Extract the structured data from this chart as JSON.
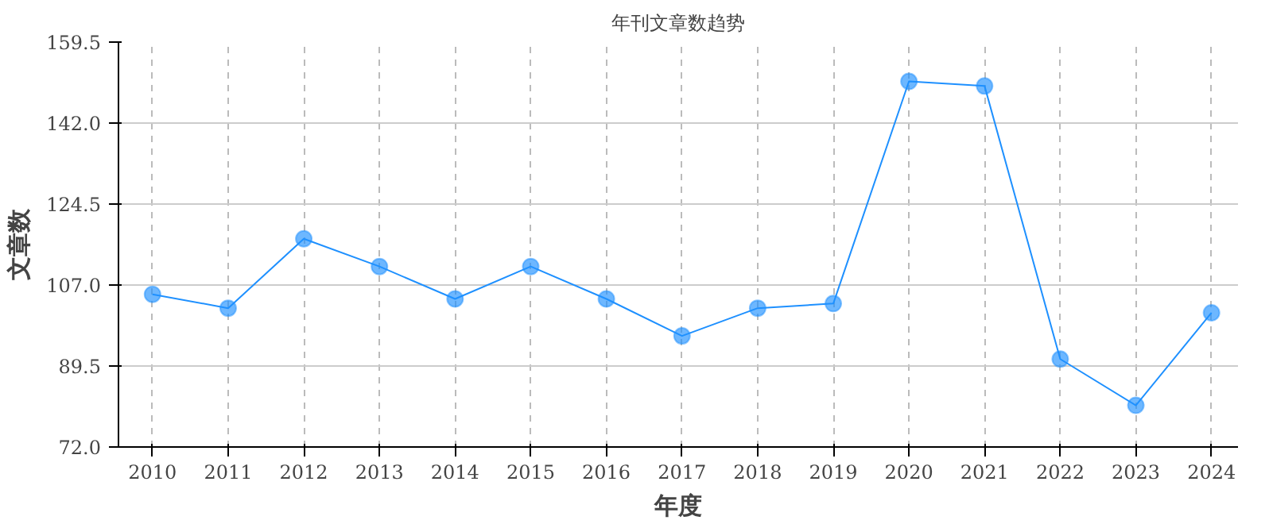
{
  "chart_data": {
    "type": "line",
    "title": "年刊文章数趋势",
    "xlabel": "年度",
    "ylabel": "文章数",
    "categories": [
      "2010",
      "2011",
      "2012",
      "2013",
      "2014",
      "2015",
      "2016",
      "2017",
      "2018",
      "2019",
      "2020",
      "2021",
      "2022",
      "2023",
      "2024"
    ],
    "series": [
      {
        "color": "#1e90ff",
        "values": [
          105,
          102,
          117,
          111,
          104,
          111,
          104,
          96,
          102,
          103,
          151,
          150,
          91,
          81,
          101
        ]
      }
    ],
    "ylim": [
      72,
      159.5
    ],
    "yticks": [
      {
        "value": 72,
        "label": "72.0"
      },
      89.5,
      {
        "value": 107,
        "label": "107.0"
      },
      124.5,
      {
        "value": 142,
        "label": "142.0"
      },
      159.5
    ],
    "grid": true,
    "marker": "circle",
    "line_style": "solid"
  }
}
